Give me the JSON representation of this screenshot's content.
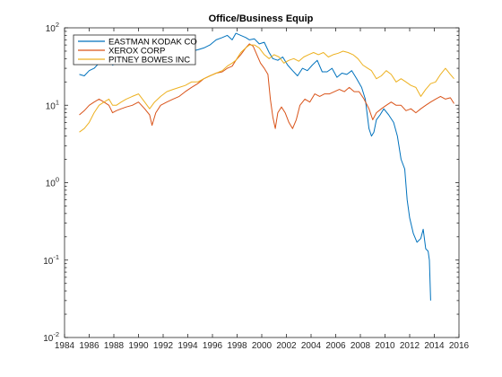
{
  "chart_data": {
    "type": "line",
    "title": "Office/Business Equip",
    "xlabel": "",
    "ylabel": "",
    "yscale": "log",
    "xlim": [
      1984,
      2016
    ],
    "ylim": [
      0.01,
      100
    ],
    "xticks": [
      "1984",
      "1986",
      "1988",
      "1990",
      "1992",
      "1994",
      "1996",
      "1998",
      "2000",
      "2002",
      "2004",
      "2006",
      "2008",
      "2010",
      "2012",
      "2014",
      "2016"
    ],
    "yticks": [
      {
        "value": 0.01,
        "base": "10",
        "exp": "-2"
      },
      {
        "value": 0.1,
        "base": "10",
        "exp": "-1"
      },
      {
        "value": 1,
        "base": "10",
        "exp": "0"
      },
      {
        "value": 10,
        "base": "10",
        "exp": "1"
      },
      {
        "value": 100,
        "base": "10",
        "exp": "2"
      }
    ],
    "grid": false,
    "legend_position": "top-left",
    "series": [
      {
        "name": "EASTMAN KODAK CO",
        "color": "#0072bd",
        "x": [
          1985.2,
          1985.6,
          1986.0,
          1986.4,
          1986.8,
          1987.2,
          1987.6,
          1987.9,
          1988.2,
          1988.6,
          1989.0,
          1989.5,
          1990.0,
          1990.5,
          1990.9,
          1991.3,
          1991.8,
          1992.3,
          1992.8,
          1993.3,
          1993.8,
          1994.3,
          1994.8,
          1995.3,
          1995.8,
          1996.3,
          1996.8,
          1997.2,
          1997.6,
          1997.9,
          1998.3,
          1998.7,
          1999.0,
          1999.4,
          1999.8,
          2000.2,
          2000.6,
          2000.9,
          2001.3,
          2001.7,
          2002.1,
          2002.5,
          2002.9,
          2003.3,
          2003.7,
          2004.1,
          2004.5,
          2004.9,
          2005.3,
          2005.7,
          2006.1,
          2006.5,
          2006.9,
          2007.3,
          2007.7,
          2008.1,
          2008.4,
          2008.7,
          2008.9,
          2009.1,
          2009.3,
          2009.6,
          2009.9,
          2010.3,
          2010.7,
          2011.0,
          2011.3,
          2011.6,
          2011.8,
          2012.0,
          2012.3,
          2012.6,
          2012.9,
          2013.1,
          2013.3,
          2013.5,
          2013.6,
          2013.7
        ],
        "y": [
          25,
          24,
          28,
          30,
          35,
          38,
          42,
          33,
          35,
          38,
          41,
          40,
          40,
          35,
          38,
          40,
          45,
          43,
          45,
          47,
          48,
          50,
          52,
          55,
          60,
          70,
          75,
          80,
          70,
          85,
          80,
          75,
          70,
          72,
          62,
          65,
          48,
          40,
          38,
          42,
          33,
          28,
          24,
          30,
          28,
          33,
          38,
          27,
          27,
          30,
          23,
          26,
          25,
          28,
          22,
          17,
          12,
          5,
          4,
          4.5,
          6.5,
          7.5,
          9,
          7.5,
          6,
          4,
          2,
          1.5,
          0.6,
          0.35,
          0.22,
          0.17,
          0.19,
          0.25,
          0.14,
          0.13,
          0.1,
          0.03
        ]
      },
      {
        "name": "XEROX CORP",
        "color": "#d95319",
        "x": [
          1985.2,
          1985.6,
          1986.0,
          1986.4,
          1986.8,
          1987.2,
          1987.6,
          1987.9,
          1988.2,
          1988.6,
          1989.0,
          1989.5,
          1990.0,
          1990.5,
          1990.9,
          1991.1,
          1991.4,
          1991.8,
          1992.3,
          1992.8,
          1993.3,
          1993.8,
          1994.3,
          1994.8,
          1995.3,
          1995.8,
          1996.3,
          1996.8,
          1997.2,
          1997.6,
          1997.9,
          1998.3,
          1998.7,
          1999.0,
          1999.3,
          1999.6,
          1999.9,
          2000.2,
          2000.5,
          2000.7,
          2000.9,
          2001.1,
          2001.3,
          2001.6,
          2001.9,
          2002.2,
          2002.5,
          2002.8,
          2003.1,
          2003.5,
          2003.9,
          2004.3,
          2004.7,
          2005.1,
          2005.5,
          2005.9,
          2006.3,
          2006.7,
          2007.1,
          2007.5,
          2007.9,
          2008.3,
          2008.7,
          2009.0,
          2009.3,
          2009.7,
          2010.1,
          2010.5,
          2010.9,
          2011.3,
          2011.7,
          2012.1,
          2012.5,
          2012.9,
          2013.3,
          2013.7,
          2014.1,
          2014.5,
          2014.9,
          2015.3,
          2015.6
        ],
        "y": [
          7.5,
          8.5,
          10,
          11,
          12,
          11,
          10,
          8,
          8.5,
          9,
          9.5,
          10,
          11,
          9,
          7.5,
          5.5,
          8,
          10,
          11,
          12,
          13,
          15,
          17,
          19,
          22,
          24,
          26,
          27,
          30,
          32,
          38,
          45,
          55,
          62,
          58,
          45,
          35,
          30,
          25,
          12,
          7,
          5,
          8,
          9.5,
          8,
          6,
          5,
          6.5,
          10,
          12,
          11,
          14,
          13,
          14,
          14,
          15,
          16,
          15,
          17,
          15,
          15,
          12,
          9,
          6.5,
          8,
          9,
          10,
          11,
          10,
          10,
          8.5,
          9,
          8,
          9,
          10,
          11,
          12,
          13,
          12,
          12.5,
          10.5
        ]
      },
      {
        "name": "PITNEY BOWES INC",
        "color": "#edb120",
        "x": [
          1985.2,
          1985.6,
          1986.0,
          1986.4,
          1986.8,
          1987.2,
          1987.6,
          1987.9,
          1988.2,
          1988.6,
          1989.0,
          1989.5,
          1990.0,
          1990.5,
          1990.9,
          1991.3,
          1991.8,
          1992.3,
          1992.8,
          1993.3,
          1993.8,
          1994.3,
          1994.8,
          1995.3,
          1995.8,
          1996.3,
          1996.8,
          1997.2,
          1997.6,
          1997.9,
          1998.3,
          1998.7,
          1999.0,
          1999.4,
          1999.8,
          2000.2,
          2000.6,
          2001.0,
          2001.4,
          2001.8,
          2002.2,
          2002.6,
          2003.0,
          2003.4,
          2003.8,
          2004.2,
          2004.6,
          2005.0,
          2005.4,
          2005.8,
          2006.2,
          2006.6,
          2007.0,
          2007.4,
          2007.8,
          2008.2,
          2008.6,
          2008.9,
          2009.3,
          2009.7,
          2010.1,
          2010.5,
          2010.9,
          2011.3,
          2011.7,
          2012.1,
          2012.5,
          2012.9,
          2013.3,
          2013.7,
          2014.1,
          2014.5,
          2014.9,
          2015.3,
          2015.6
        ],
        "y": [
          4.5,
          5,
          6,
          8,
          10,
          11,
          12,
          10,
          10,
          11,
          12,
          13,
          14,
          11,
          9,
          11,
          13,
          15,
          16,
          17,
          18,
          20,
          20,
          22,
          24,
          26,
          28,
          32,
          35,
          38,
          48,
          55,
          60,
          60,
          55,
          45,
          40,
          45,
          42,
          35,
          38,
          40,
          37,
          42,
          45,
          48,
          45,
          48,
          42,
          45,
          47,
          50,
          48,
          45,
          40,
          33,
          30,
          28,
          22,
          24,
          28,
          25,
          20,
          22,
          20,
          18,
          17,
          13,
          16,
          19,
          20,
          25,
          30,
          25,
          22
        ]
      }
    ]
  }
}
